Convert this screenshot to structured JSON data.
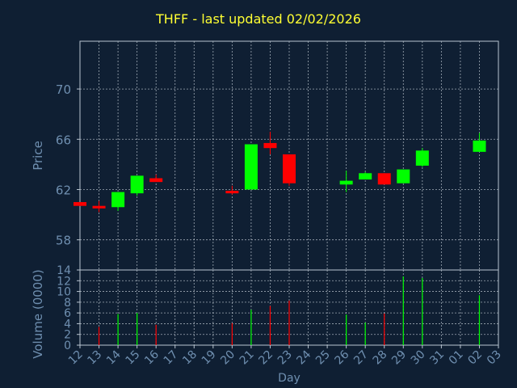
{
  "title": "THFF - last updated 02/02/2026",
  "colors": {
    "background": "#0f1f33",
    "axis": "#b8c4d0",
    "grid": "#cfd8e0",
    "label": "#6f8fb0",
    "title": "#ffff33",
    "up": "#00ff00",
    "down": "#ff0000"
  },
  "chart_data": [
    {
      "type": "candlestick",
      "ylabel": "Price",
      "ylim": [
        55.6,
        73.8
      ],
      "yticks": [
        58,
        62,
        66,
        70
      ],
      "grid": true,
      "candles": [
        {
          "day": "12",
          "open": 61.0,
          "close": 60.7,
          "high": 61.0,
          "low": 60.7
        },
        {
          "day": "13",
          "open": 60.7,
          "close": 60.5,
          "high": 61.1,
          "low": 60.2
        },
        {
          "day": "14",
          "open": 60.6,
          "close": 61.8,
          "high": 61.8,
          "low": 60.3
        },
        {
          "day": "15",
          "open": 61.7,
          "close": 63.1,
          "high": 63.1,
          "low": 61.5
        },
        {
          "day": "16",
          "open": 62.9,
          "close": 62.6,
          "high": 63.2,
          "low": 62.6
        },
        {
          "day": "20",
          "open": 61.9,
          "close": 61.7,
          "high": 62.3,
          "low": 61.6
        },
        {
          "day": "21",
          "open": 62.0,
          "close": 65.6,
          "high": 65.6,
          "low": 62.0
        },
        {
          "day": "22",
          "open": 65.7,
          "close": 65.3,
          "high": 66.6,
          "low": 64.8
        },
        {
          "day": "23",
          "open": 64.8,
          "close": 62.5,
          "high": 64.8,
          "low": 62.3
        },
        {
          "day": "26",
          "open": 62.4,
          "close": 62.7,
          "high": 63.5,
          "low": 61.8
        },
        {
          "day": "27",
          "open": 62.8,
          "close": 63.3,
          "high": 63.4,
          "low": 62.8
        },
        {
          "day": "28",
          "open": 63.3,
          "close": 62.4,
          "high": 63.3,
          "low": 62.4
        },
        {
          "day": "29",
          "open": 62.5,
          "close": 63.6,
          "high": 63.6,
          "low": 62.5
        },
        {
          "day": "30",
          "open": 63.9,
          "close": 65.1,
          "high": 65.3,
          "low": 63.8
        },
        {
          "day": "02",
          "open": 65.0,
          "close": 65.9,
          "high": 66.5,
          "low": 65.0
        }
      ]
    },
    {
      "type": "bar",
      "ylabel": "Volume (0000)",
      "xlabel": "Day",
      "ylim": [
        0,
        14
      ],
      "yticks": [
        0,
        2,
        4,
        6,
        8,
        10,
        12,
        14
      ],
      "categories": [
        "12",
        "13",
        "14",
        "15",
        "16",
        "17",
        "18",
        "19",
        "20",
        "21",
        "22",
        "23",
        "24",
        "25",
        "26",
        "27",
        "28",
        "29",
        "30",
        "31",
        "01",
        "02",
        "03"
      ],
      "bars": [
        {
          "day": "13",
          "value": 3.4,
          "dir": "down"
        },
        {
          "day": "14",
          "value": 5.8,
          "dir": "up"
        },
        {
          "day": "15",
          "value": 6.0,
          "dir": "up"
        },
        {
          "day": "16",
          "value": 3.8,
          "dir": "down"
        },
        {
          "day": "20",
          "value": 4.1,
          "dir": "down"
        },
        {
          "day": "21",
          "value": 6.6,
          "dir": "up"
        },
        {
          "day": "22",
          "value": 7.3,
          "dir": "down"
        },
        {
          "day": "23",
          "value": 8.3,
          "dir": "down"
        },
        {
          "day": "26",
          "value": 5.7,
          "dir": "up"
        },
        {
          "day": "27",
          "value": 4.2,
          "dir": "up"
        },
        {
          "day": "28",
          "value": 5.9,
          "dir": "down"
        },
        {
          "day": "29",
          "value": 12.8,
          "dir": "up"
        },
        {
          "day": "30",
          "value": 12.5,
          "dir": "up"
        },
        {
          "day": "02",
          "value": 9.3,
          "dir": "up"
        }
      ]
    }
  ]
}
